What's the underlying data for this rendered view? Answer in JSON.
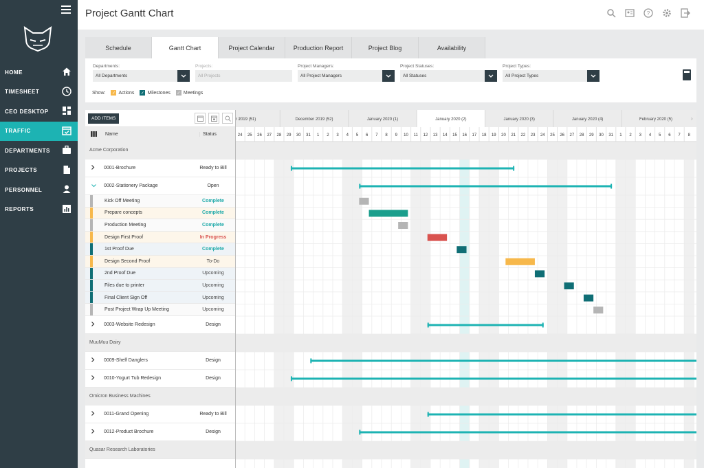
{
  "sidebar": {
    "items": [
      {
        "label": "HOME",
        "icon": "home-icon",
        "active": false
      },
      {
        "label": "TIMESHEET",
        "icon": "clock-icon",
        "active": false
      },
      {
        "label": "CEO DESKTOP",
        "icon": "dashboard-icon",
        "active": false
      },
      {
        "label": "TRAFFIC",
        "icon": "calendar-check-icon",
        "active": true
      },
      {
        "label": "DEPARTMENTS",
        "icon": "briefcase-icon",
        "active": false
      },
      {
        "label": "PROJECTS",
        "icon": "document-icon",
        "active": false
      },
      {
        "label": "PERSONNEL",
        "icon": "person-icon",
        "active": false
      },
      {
        "label": "REPORTS",
        "icon": "bar-chart-icon",
        "active": false
      }
    ]
  },
  "header": {
    "title": "Project Gantt Chart"
  },
  "tabs": [
    {
      "label": "Schedule",
      "active": false
    },
    {
      "label": "Gantt Chart",
      "active": true
    },
    {
      "label": "Project Calendar",
      "active": false
    },
    {
      "label": "Production Report",
      "active": false
    },
    {
      "label": "Project Blog",
      "active": false
    },
    {
      "label": "Availability",
      "active": false
    }
  ],
  "filters": {
    "departments": {
      "label": "Departments:",
      "value": "All Departments"
    },
    "projects": {
      "label": "Projects:",
      "value": "All Projects"
    },
    "managers": {
      "label": "Project Managers:",
      "value": "All Project Managers"
    },
    "statuses": {
      "label": "Project Statuses:",
      "value": "All Statuses"
    },
    "types": {
      "label": "Project Types:",
      "value": "All Project Types"
    },
    "show_label": "Show:",
    "show_actions": "Actions",
    "show_milestones": "Milestones",
    "show_meetings": "Meetings"
  },
  "grid": {
    "add_items": "ADD ITEMS",
    "col_name": "Name",
    "col_status": "Status"
  },
  "colors": {
    "teal": "#1db3b3",
    "dark_teal": "#0f6e75",
    "green": "#1a9e8c",
    "red": "#d9534f",
    "orange": "#f7b84b",
    "gray": "#b5b5b5",
    "sidebar": "#2f3e46"
  },
  "rows": [
    {
      "kind": "group",
      "name": "Acme Corporation"
    },
    {
      "kind": "project",
      "name": "0001-Brochure",
      "status": "Ready to Bill",
      "open": false
    },
    {
      "kind": "project",
      "name": "0002-Stationery Package",
      "status": "Open",
      "open": true
    },
    {
      "kind": "task",
      "name": "Kick Off Meeting",
      "status": "Complete",
      "strip": "gray",
      "statusColor": "teal"
    },
    {
      "kind": "task",
      "name": "Prepare concepts",
      "status": "Complete",
      "strip": "orange",
      "statusColor": "teal"
    },
    {
      "kind": "task",
      "name": "Production Meeting",
      "status": "Complete",
      "strip": "gray",
      "statusColor": "teal"
    },
    {
      "kind": "task",
      "name": "Design First Proof",
      "status": "In Progress",
      "strip": "orange",
      "statusColor": "red"
    },
    {
      "kind": "task",
      "name": "1st Proof Due",
      "status": "Complete",
      "strip": "dark_teal",
      "statusColor": "teal"
    },
    {
      "kind": "task",
      "name": "Design Second Proof",
      "status": "To-Do",
      "strip": "orange",
      "statusColor": "none"
    },
    {
      "kind": "task",
      "name": "2nd Proof Due",
      "status": "Upcoming",
      "strip": "dark_teal",
      "statusColor": "none"
    },
    {
      "kind": "task",
      "name": "Files due to printer",
      "status": "Upcoming",
      "strip": "dark_teal",
      "statusColor": "none"
    },
    {
      "kind": "task",
      "name": "Final Client Sign Off",
      "status": "Upcoming",
      "strip": "dark_teal",
      "statusColor": "none"
    },
    {
      "kind": "task",
      "name": "Post Project Wrap Up Meeting",
      "status": "Upcoming",
      "strip": "gray",
      "statusColor": "none"
    },
    {
      "kind": "project",
      "name": "0003-Website Redesign",
      "status": "Design",
      "open": false
    },
    {
      "kind": "group",
      "name": "MuuMuu Dairy"
    },
    {
      "kind": "project",
      "name": "0009-Shelf Danglers",
      "status": "Design",
      "open": false
    },
    {
      "kind": "project",
      "name": "0010-Yogurt Tub Redesign",
      "status": "Design",
      "open": false
    },
    {
      "kind": "group",
      "name": "Omicron Business Machines"
    },
    {
      "kind": "project",
      "name": "0011-Grand Opening",
      "status": "Ready to Bill",
      "open": false
    },
    {
      "kind": "project",
      "name": "0012-Product Brochure",
      "status": "Design",
      "open": false
    },
    {
      "kind": "group",
      "name": "Quasar Research Laboratories"
    }
  ],
  "timeline": {
    "weeks": [
      {
        "label": "r 2019 (51)",
        "active": false
      },
      {
        "label": "December 2019 (52)",
        "active": false
      },
      {
        "label": "January 2020 (1)",
        "active": false
      },
      {
        "label": "January 2020 (2)",
        "active": true
      },
      {
        "label": "January 2020 (3)",
        "active": false
      },
      {
        "label": "January 2020 (4)",
        "active": false
      },
      {
        "label": "February 2020 (5)",
        "active": false
      }
    ],
    "days": [
      "24",
      "25",
      "26",
      "27",
      "28",
      "29",
      "30",
      "31",
      "1",
      "2",
      "3",
      "4",
      "5",
      "6",
      "7",
      "8",
      "9",
      "10",
      "11",
      "12",
      "13",
      "14",
      "15",
      "16",
      "17",
      "18",
      "19",
      "20",
      "21",
      "22",
      "23",
      "24",
      "25",
      "26",
      "27",
      "28",
      "29",
      "30",
      "31",
      "1",
      "2",
      "3",
      "4",
      "5",
      "6",
      "7",
      "8"
    ],
    "today_day_index": 23,
    "weekend_day_indices": [
      4,
      5,
      11,
      12,
      18,
      19,
      25,
      26,
      32,
      33,
      39,
      40,
      46
    ],
    "bars": [
      {
        "row": 1,
        "type": "project",
        "start": 5.7,
        "end": 28.6
      },
      {
        "row": 2,
        "type": "project",
        "start": 12.7,
        "end": 38.6
      },
      {
        "row": 3,
        "type": "task",
        "color": "gray",
        "start": 12.7,
        "end": 13.7
      },
      {
        "row": 4,
        "type": "task",
        "color": "green",
        "start": 13.7,
        "end": 17.7
      },
      {
        "row": 5,
        "type": "task",
        "color": "gray",
        "start": 16.7,
        "end": 17.7
      },
      {
        "row": 6,
        "type": "task",
        "color": "red",
        "start": 19.7,
        "end": 21.7
      },
      {
        "row": 7,
        "type": "task",
        "color": "dark_teal",
        "start": 22.7,
        "end": 23.7
      },
      {
        "row": 8,
        "type": "task",
        "color": "orange",
        "start": 27.7,
        "end": 30.7
      },
      {
        "row": 9,
        "type": "task",
        "color": "dark_teal",
        "start": 30.7,
        "end": 31.7
      },
      {
        "row": 10,
        "type": "task",
        "color": "dark_teal",
        "start": 33.7,
        "end": 34.7
      },
      {
        "row": 11,
        "type": "task",
        "color": "dark_teal",
        "start": 35.7,
        "end": 36.7
      },
      {
        "row": 12,
        "type": "task",
        "color": "gray",
        "start": 36.7,
        "end": 37.7
      },
      {
        "row": 13,
        "type": "project",
        "start": 19.7,
        "end": 31.6
      },
      {
        "row": 15,
        "type": "project",
        "start": 7.7,
        "end": 47.5
      },
      {
        "row": 16,
        "type": "project",
        "start": 5.7,
        "end": 47.5
      },
      {
        "row": 18,
        "type": "project",
        "start": 19.7,
        "end": 47.5
      },
      {
        "row": 19,
        "type": "project",
        "start": 12.7,
        "end": 47.5
      }
    ]
  }
}
